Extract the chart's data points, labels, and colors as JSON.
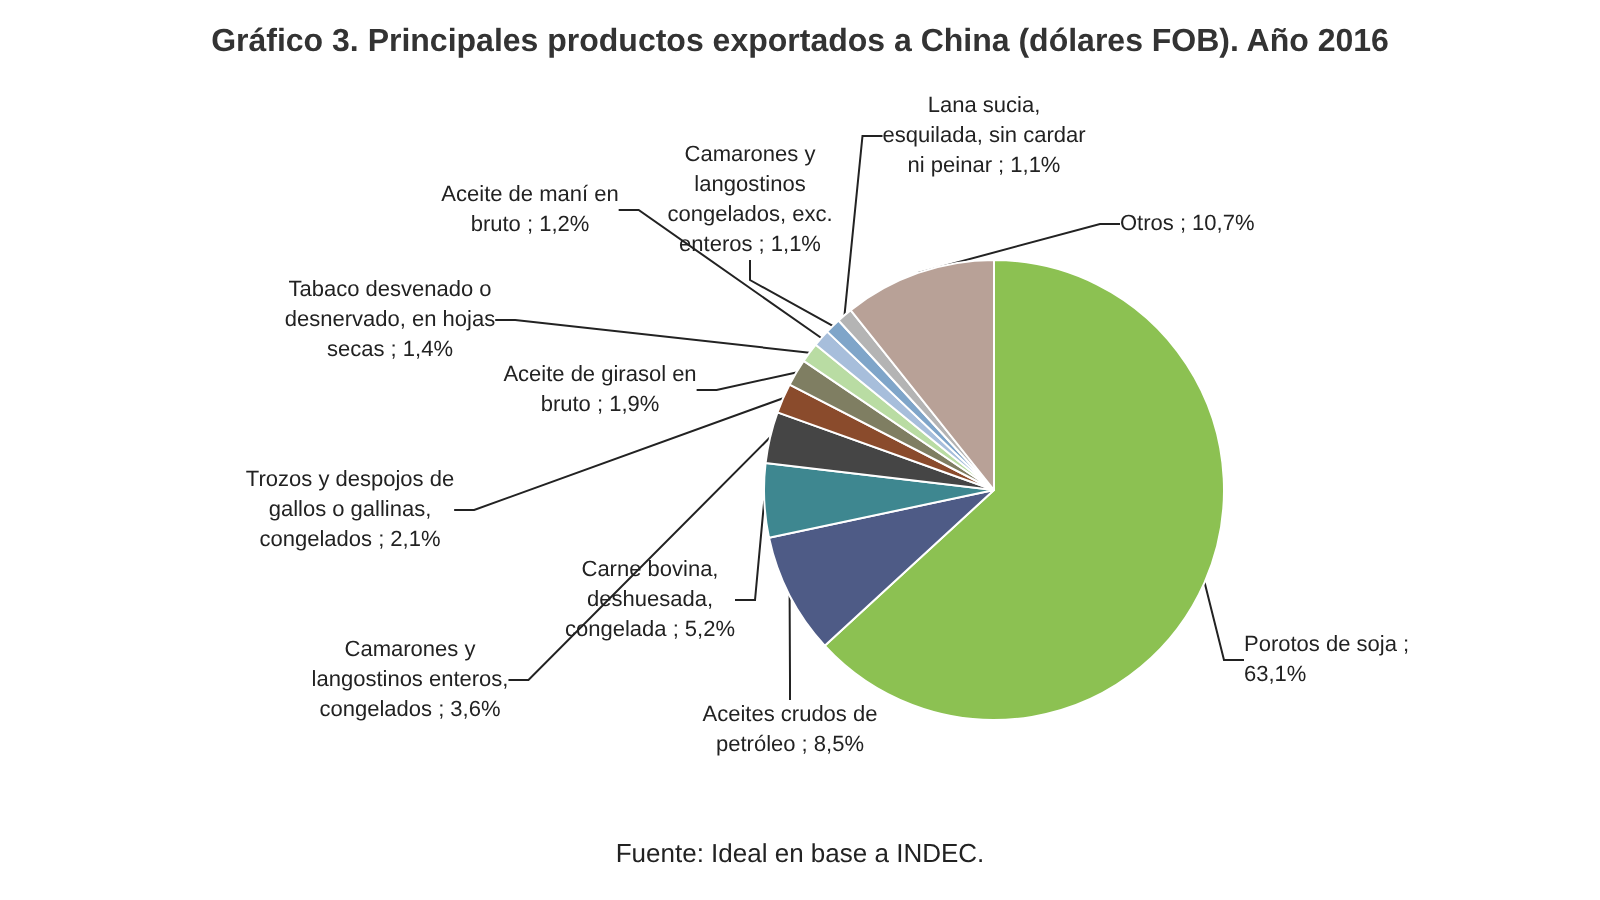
{
  "chart_data": {
    "type": "pie",
    "title": "Gráfico 3. Principales productos exportados a China (dólares FOB). Año 2016",
    "categories": [
      "Porotos de soja",
      "Aceites crudos de petróleo",
      "Carne bovina, deshuesada, congelada",
      "Camarones y langostinos enteros, congelados",
      "Trozos y despojos de gallos o gallinas, congelados",
      "Aceite de girasol en bruto",
      "Tabaco desvenado o desnervado, en hojas secas",
      "Aceite de maní en bruto",
      "Camarones y langostinos congelados, exc. enteros",
      "Lana sucia, esquilada, sin cardar ni peinar",
      "Otros"
    ],
    "values": [
      63.1,
      8.5,
      5.2,
      3.6,
      2.1,
      1.9,
      1.4,
      1.2,
      1.1,
      1.1,
      10.7
    ],
    "value_labels": [
      "; 63,1%",
      "; 8,5%",
      "; 5,2%",
      "; 3,6%",
      "; 2,1%",
      "; 1,9%",
      "; 1,4%",
      "; 1,2%",
      "; 1,1%",
      "; 1,1%",
      "; 10,7%"
    ],
    "colors": [
      "#8cc152",
      "#4e5b86",
      "#3e8790",
      "#454545",
      "#8a4b2c",
      "#7f7e62",
      "#b9dca3",
      "#a7bedb",
      "#7fa5c9",
      "#b4b4b4",
      "#b8a197"
    ],
    "annotations": [
      "Fuente: Ideal en base a INDEC."
    ],
    "legend": false
  }
}
